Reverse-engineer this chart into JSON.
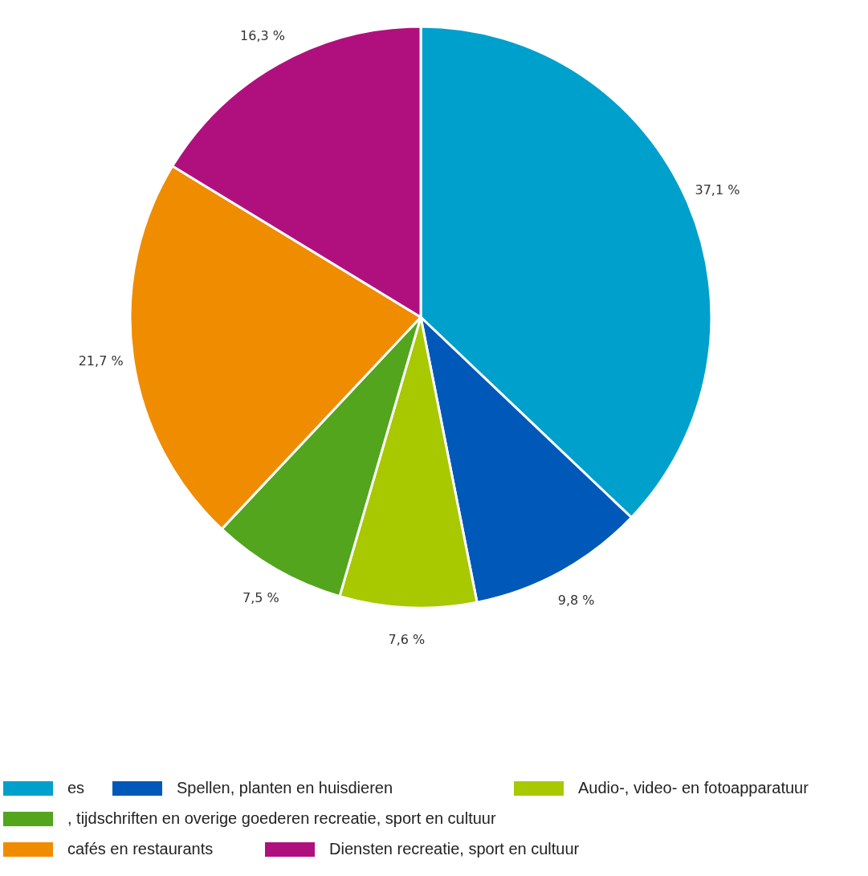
{
  "chart_data": {
    "type": "pie",
    "categories": [
      "es",
      "Spellen, planten en huisdieren",
      "Audio-, video- en fotoapparatuur",
      ", tijdschriften en overige goederen recreatie, sport en cultuur",
      "cafés en restaurants",
      "Diensten recreatie, sport en cultuur"
    ],
    "values": [
      37.1,
      9.8,
      7.6,
      7.5,
      21.7,
      16.3
    ],
    "colors": [
      "#00a0cc",
      "#0058b8",
      "#a8c800",
      "#52a51c",
      "#f08c00",
      "#b0107e"
    ],
    "value_labels": [
      "37,1 %",
      "9,8 %",
      "7,6 %",
      "7,5 %",
      "21,7 %",
      "16,3 %"
    ],
    "legend": "bottom"
  }
}
